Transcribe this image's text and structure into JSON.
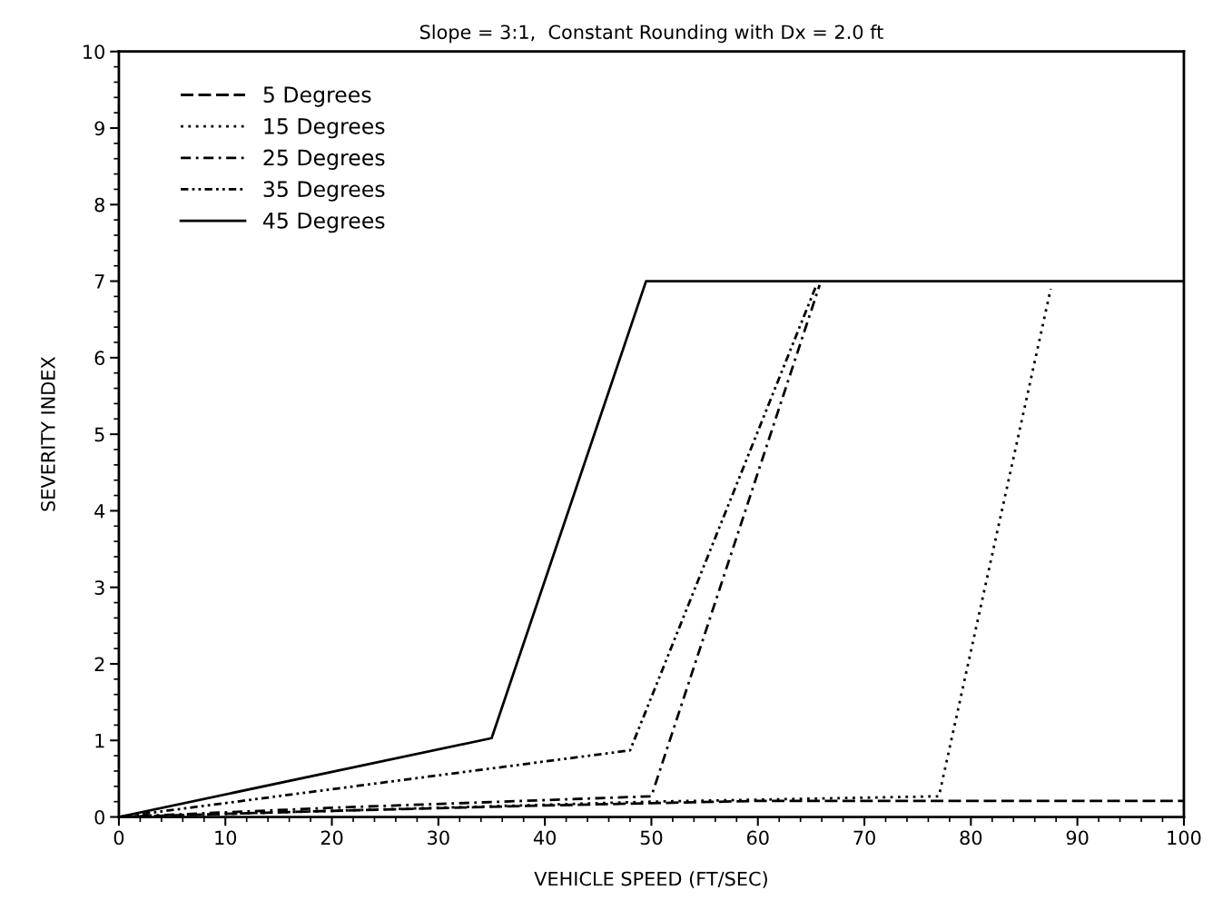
{
  "chart_data": {
    "type": "line",
    "title": "Slope = 3:1,  Constant Rounding with Dx = 2.0 ft",
    "xlabel": "VEHICLE SPEED (FT/SEC)",
    "ylabel": "SEVERITY INDEX",
    "xlim": [
      0,
      100
    ],
    "ylim": [
      0,
      10
    ],
    "xticks": [
      0,
      10,
      20,
      30,
      40,
      50,
      60,
      70,
      80,
      90,
      100
    ],
    "yticks": [
      0,
      1,
      2,
      3,
      4,
      5,
      6,
      7,
      8,
      9,
      10
    ],
    "grid": false,
    "legend": "top left",
    "marker": "none",
    "series": [
      {
        "name": "5 Degrees",
        "color": "#000000",
        "line_style": "dashed",
        "x": [
          0,
          20,
          40,
          50,
          60,
          100
        ],
        "values": [
          0,
          0.08,
          0.15,
          0.18,
          0.21,
          0.21
        ]
      },
      {
        "name": "15 Degrees",
        "color": "#000000",
        "line_style": "dotted",
        "x": [
          0,
          50,
          77,
          87.5
        ],
        "values": [
          0,
          0.2,
          0.27,
          6.9
        ]
      },
      {
        "name": "25 Degrees",
        "color": "#000000",
        "line_style": "dashdot",
        "x": [
          0,
          20,
          50,
          65.8
        ],
        "values": [
          0,
          0.12,
          0.27,
          6.95
        ]
      },
      {
        "name": "35 Degrees",
        "color": "#000000",
        "line_style": "dashdotdot",
        "x": [
          0,
          48,
          65.5
        ],
        "values": [
          0,
          0.87,
          6.95
        ]
      },
      {
        "name": "45 Degrees",
        "color": "#000000",
        "line_style": "solid",
        "x": [
          0,
          35,
          49.5,
          100
        ],
        "values": [
          0,
          1.03,
          7,
          7
        ]
      }
    ]
  }
}
